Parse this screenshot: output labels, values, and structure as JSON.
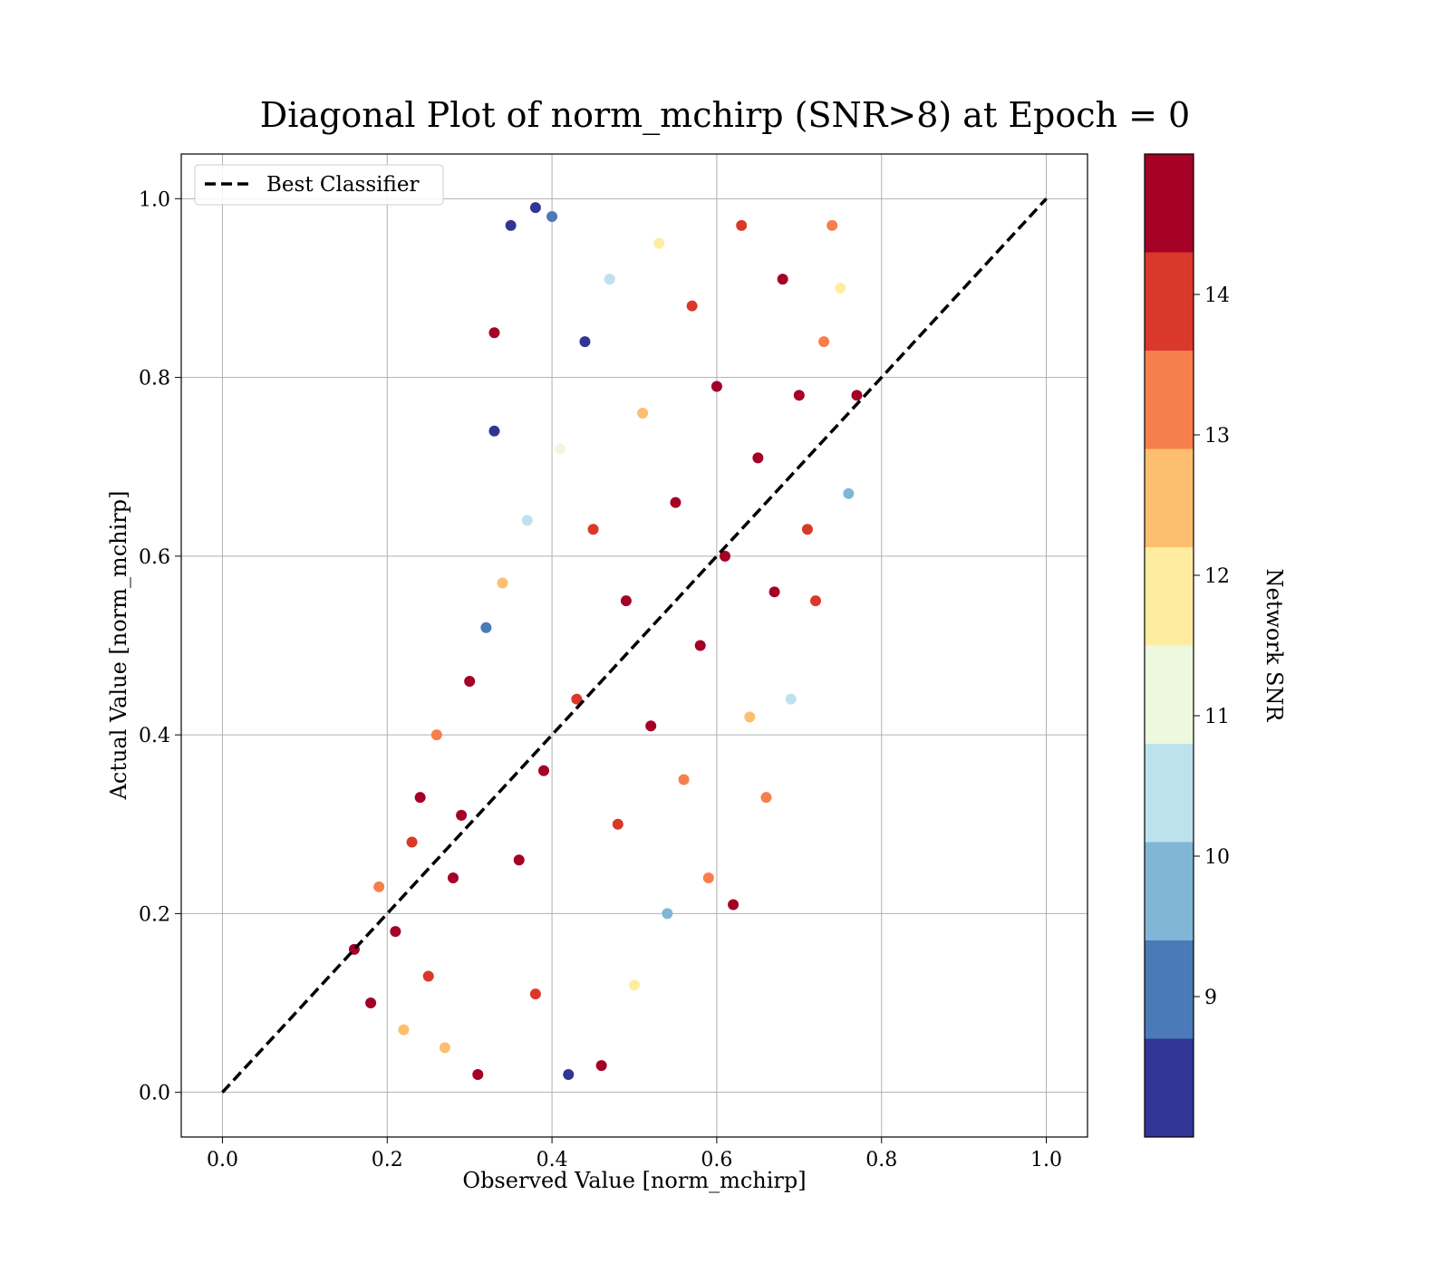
{
  "chart_data": {
    "type": "scatter",
    "title": "Diagonal Plot of norm_mchirp (SNR>8) at Epoch = 0",
    "xlabel": "Observed Value [norm_mchirp]",
    "ylabel": "Actual Value [norm_mchirp]",
    "xlim": [
      -0.05,
      1.05
    ],
    "ylim": [
      -0.05,
      1.05
    ],
    "xticks": [
      "0.0",
      "0.2",
      "0.4",
      "0.6",
      "0.8",
      "1.0"
    ],
    "yticks": [
      "0.0",
      "0.2",
      "0.4",
      "0.6",
      "0.8",
      "1.0"
    ],
    "grid": true,
    "legend": {
      "position": "top-left",
      "entries": [
        {
          "label": "Best Classifier",
          "style": "dashed",
          "color": "#000000"
        }
      ]
    },
    "reference_line": {
      "label": "Best Classifier",
      "x": [
        0.0,
        1.0
      ],
      "y": [
        0.0,
        1.0
      ]
    },
    "colorbar": {
      "label": "Network SNR",
      "range": [
        8,
        15
      ],
      "ticks": [
        "9",
        "10",
        "11",
        "12",
        "13",
        "14"
      ],
      "colormap": "RdYlBu_r",
      "bins": [
        {
          "from": 8.0,
          "to": 8.7,
          "color": "#313695"
        },
        {
          "from": 8.7,
          "to": 9.4,
          "color": "#4a7ab8"
        },
        {
          "from": 9.4,
          "to": 10.1,
          "color": "#80b6d6"
        },
        {
          "from": 10.1,
          "to": 10.8,
          "color": "#bde2ee"
        },
        {
          "from": 10.8,
          "to": 11.5,
          "color": "#edf8df"
        },
        {
          "from": 11.5,
          "to": 12.2,
          "color": "#feeda1"
        },
        {
          "from": 12.2,
          "to": 12.9,
          "color": "#fdbf6f"
        },
        {
          "from": 12.9,
          "to": 13.6,
          "color": "#f67f4b"
        },
        {
          "from": 13.6,
          "to": 14.3,
          "color": "#da382a"
        },
        {
          "from": 14.3,
          "to": 15.0,
          "color": "#a50026"
        }
      ]
    },
    "series": [
      {
        "marker": "circle",
        "color_by": "Network SNR",
        "points": [
          {
            "x": 0.16,
            "y": 0.16,
            "snr": 14.6
          },
          {
            "x": 0.18,
            "y": 0.1,
            "snr": 14.6
          },
          {
            "x": 0.19,
            "y": 0.23,
            "snr": 13.4
          },
          {
            "x": 0.21,
            "y": 0.18,
            "snr": 14.8
          },
          {
            "x": 0.22,
            "y": 0.07,
            "snr": 12.5
          },
          {
            "x": 0.23,
            "y": 0.28,
            "snr": 14.0
          },
          {
            "x": 0.24,
            "y": 0.33,
            "snr": 14.7
          },
          {
            "x": 0.25,
            "y": 0.13,
            "snr": 14.2
          },
          {
            "x": 0.26,
            "y": 0.4,
            "snr": 13.2
          },
          {
            "x": 0.27,
            "y": 0.05,
            "snr": 12.7
          },
          {
            "x": 0.28,
            "y": 0.24,
            "snr": 14.9
          },
          {
            "x": 0.29,
            "y": 0.31,
            "snr": 14.5
          },
          {
            "x": 0.3,
            "y": 0.46,
            "snr": 14.6
          },
          {
            "x": 0.31,
            "y": 0.02,
            "snr": 14.7
          },
          {
            "x": 0.32,
            "y": 0.52,
            "snr": 9.1
          },
          {
            "x": 0.33,
            "y": 0.85,
            "snr": 14.5
          },
          {
            "x": 0.33,
            "y": 0.74,
            "snr": 8.3
          },
          {
            "x": 0.34,
            "y": 0.57,
            "snr": 12.5
          },
          {
            "x": 0.35,
            "y": 0.97,
            "snr": 8.3
          },
          {
            "x": 0.36,
            "y": 0.26,
            "snr": 14.8
          },
          {
            "x": 0.37,
            "y": 0.64,
            "snr": 10.5
          },
          {
            "x": 0.38,
            "y": 0.99,
            "snr": 8.3
          },
          {
            "x": 0.38,
            "y": 0.11,
            "snr": 13.6
          },
          {
            "x": 0.39,
            "y": 0.36,
            "snr": 14.9
          },
          {
            "x": 0.4,
            "y": 0.98,
            "snr": 9.2
          },
          {
            "x": 0.41,
            "y": 0.72,
            "snr": 11.0
          },
          {
            "x": 0.42,
            "y": 0.02,
            "snr": 8.5
          },
          {
            "x": 0.43,
            "y": 0.44,
            "snr": 14.2
          },
          {
            "x": 0.44,
            "y": 0.84,
            "snr": 8.6
          },
          {
            "x": 0.45,
            "y": 0.63,
            "snr": 13.8
          },
          {
            "x": 0.46,
            "y": 0.03,
            "snr": 14.4
          },
          {
            "x": 0.47,
            "y": 0.91,
            "snr": 10.3
          },
          {
            "x": 0.48,
            "y": 0.3,
            "snr": 13.9
          },
          {
            "x": 0.49,
            "y": 0.55,
            "snr": 14.8
          },
          {
            "x": 0.5,
            "y": 0.12,
            "snr": 11.8
          },
          {
            "x": 0.51,
            "y": 0.76,
            "snr": 12.4
          },
          {
            "x": 0.52,
            "y": 0.41,
            "snr": 14.6
          },
          {
            "x": 0.53,
            "y": 0.95,
            "snr": 12.0
          },
          {
            "x": 0.54,
            "y": 0.2,
            "snr": 9.5
          },
          {
            "x": 0.55,
            "y": 0.66,
            "snr": 14.7
          },
          {
            "x": 0.56,
            "y": 0.35,
            "snr": 13.1
          },
          {
            "x": 0.57,
            "y": 0.88,
            "snr": 13.8
          },
          {
            "x": 0.58,
            "y": 0.5,
            "snr": 14.5
          },
          {
            "x": 0.59,
            "y": 0.24,
            "snr": 12.9
          },
          {
            "x": 0.6,
            "y": 0.79,
            "snr": 14.9
          },
          {
            "x": 0.61,
            "y": 0.6,
            "snr": 14.3
          },
          {
            "x": 0.62,
            "y": 0.21,
            "snr": 14.6
          },
          {
            "x": 0.63,
            "y": 0.97,
            "snr": 13.9
          },
          {
            "x": 0.64,
            "y": 0.42,
            "snr": 12.2
          },
          {
            "x": 0.65,
            "y": 0.71,
            "snr": 14.8
          },
          {
            "x": 0.66,
            "y": 0.33,
            "snr": 13.4
          },
          {
            "x": 0.67,
            "y": 0.56,
            "snr": 14.4
          },
          {
            "x": 0.68,
            "y": 0.91,
            "snr": 14.9
          },
          {
            "x": 0.69,
            "y": 0.44,
            "snr": 10.6
          },
          {
            "x": 0.7,
            "y": 0.78,
            "snr": 14.7
          },
          {
            "x": 0.71,
            "y": 0.63,
            "snr": 13.6
          },
          {
            "x": 0.72,
            "y": 0.55,
            "snr": 14.1
          },
          {
            "x": 0.73,
            "y": 0.84,
            "snr": 13.0
          },
          {
            "x": 0.74,
            "y": 0.97,
            "snr": 13.4
          },
          {
            "x": 0.75,
            "y": 0.9,
            "snr": 12.0
          },
          {
            "x": 0.76,
            "y": 0.67,
            "snr": 9.6
          },
          {
            "x": 0.77,
            "y": 0.78,
            "snr": 14.9
          }
        ]
      }
    ]
  }
}
